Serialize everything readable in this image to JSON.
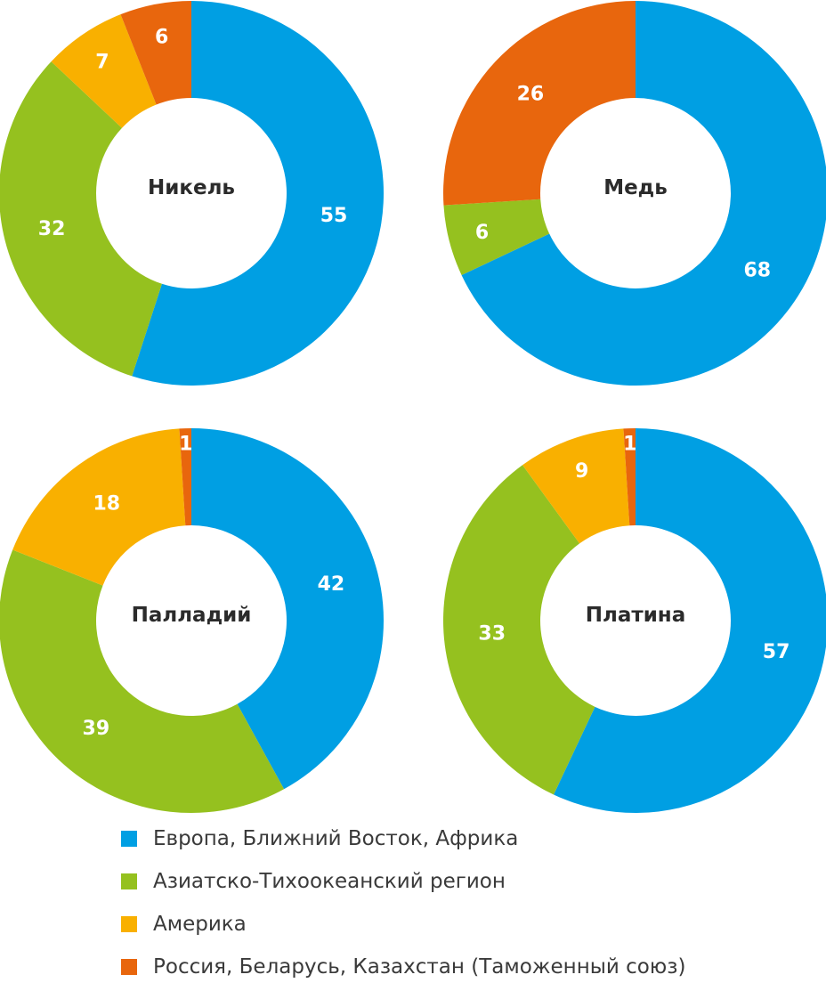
{
  "regions": [
    {
      "name": "Европа, Ближний Восток, Африка",
      "color": "#009FE3"
    },
    {
      "name": "Азиатско-Тихоокеанский регион",
      "color": "#95C11F"
    },
    {
      "name": "Америка",
      "color": "#F9B000"
    },
    {
      "name": "Россия, Беларусь, Казахстан (Таможенный союз)",
      "color": "#E8660D"
    }
  ],
  "chart_data": [
    {
      "type": "pie",
      "title": "Никель",
      "categories": [
        "Европа, Ближний Восток, Африка",
        "Азиатско-Тихоокеанский регион",
        "Америка",
        "Россия, Беларусь, Казахстан (Таможенный союз)"
      ],
      "values": [
        55,
        32,
        7,
        6
      ]
    },
    {
      "type": "pie",
      "title": "Медь",
      "categories": [
        "Европа, Ближний Восток, Африка",
        "Азиатско-Тихоокеанский регион",
        "Америка",
        "Россия, Беларусь, Казахстан (Таможенный союз)"
      ],
      "values": [
        68,
        6,
        0,
        26
      ]
    },
    {
      "type": "pie",
      "title": "Палладий",
      "categories": [
        "Европа, Ближний Восток, Африка",
        "Азиатско-Тихоокеанский регион",
        "Америка",
        "Россия, Беларусь, Казахстан (Таможенный союз)"
      ],
      "values": [
        42,
        39,
        18,
        1
      ]
    },
    {
      "type": "pie",
      "title": "Платина",
      "categories": [
        "Европа, Ближний Восток, Африка",
        "Азиатско-Тихоокеанский регион",
        "Америка",
        "Россия, Беларусь, Казахстан (Таможенный союз)"
      ],
      "values": [
        57,
        33,
        9,
        1
      ]
    }
  ]
}
